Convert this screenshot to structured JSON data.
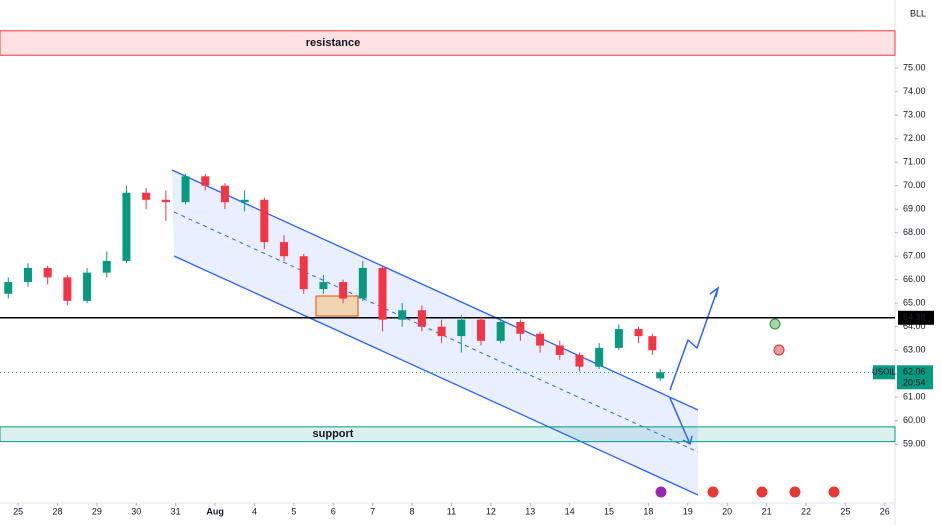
{
  "chart_data": {
    "type": "candlestick",
    "symbol": "USOIL",
    "currency_badge": "BLL",
    "countdown": "20:54",
    "x": [
      -0.25,
      0.25,
      0.75,
      1.25,
      1.75,
      2.25,
      2.75,
      3.25,
      3.75,
      4.25,
      4.75,
      5.25,
      5.75,
      6.25,
      6.75,
      7.25,
      7.75,
      8.25,
      8.75,
      9.25,
      9.75,
      10.25,
      10.75,
      11.25,
      11.75,
      12.25,
      12.75,
      13.25,
      13.75,
      14.25,
      14.75,
      15.25,
      15.75,
      16.1,
      16.3
    ],
    "open": [
      65.4,
      65.9,
      66.5,
      66.1,
      65.1,
      66.3,
      66.8,
      69.7,
      69.4,
      69.3,
      70.4,
      70.0,
      69.3,
      69.4,
      67.6,
      67.0,
      65.6,
      65.9,
      65.2,
      66.5,
      64.3,
      64.7,
      64.0,
      63.6,
      64.3,
      63.4,
      64.2,
      63.7,
      63.2,
      62.8,
      62.3,
      63.1,
      63.9,
      63.6,
      61.8
    ],
    "high": [
      66.1,
      66.7,
      66.6,
      66.2,
      66.5,
      67.2,
      70.0,
      69.9,
      69.8,
      70.5,
      70.5,
      70.1,
      69.8,
      69.5,
      67.9,
      67.1,
      66.2,
      66.0,
      66.8,
      66.6,
      65.0,
      64.9,
      64.3,
      64.5,
      64.4,
      64.4,
      64.3,
      63.8,
      63.4,
      62.9,
      63.3,
      64.1,
      64.0,
      63.7,
      62.2
    ],
    "low": [
      65.2,
      65.7,
      65.8,
      64.9,
      65.0,
      66.1,
      66.7,
      69.0,
      68.5,
      69.2,
      69.8,
      69.0,
      68.9,
      67.3,
      66.8,
      65.4,
      65.4,
      65.0,
      65.1,
      63.8,
      64.0,
      63.8,
      63.3,
      62.9,
      63.2,
      63.3,
      63.4,
      62.9,
      62.6,
      62.1,
      62.2,
      63.0,
      63.3,
      62.8,
      61.7
    ],
    "close": [
      65.9,
      66.5,
      66.1,
      65.1,
      66.3,
      66.8,
      69.7,
      69.4,
      69.3,
      70.4,
      70.0,
      69.3,
      69.4,
      67.6,
      67.0,
      65.6,
      65.9,
      65.2,
      66.5,
      64.3,
      64.7,
      64.0,
      63.6,
      64.3,
      63.4,
      64.2,
      63.7,
      63.2,
      62.8,
      62.3,
      63.1,
      63.9,
      63.6,
      63.0,
      62.06
    ],
    "up_color": "#089981",
    "down_color": "#f23645",
    "ylim": [
      56.5,
      77.9
    ],
    "xlim": [
      -0.46,
      22.26
    ],
    "yticks": [
      {
        "value": 59,
        "label": "59.00"
      },
      {
        "value": 60,
        "label": "60.00"
      },
      {
        "value": 61,
        "label": "61.00"
      },
      {
        "value": 62,
        "label": "62.00"
      },
      {
        "value": 63,
        "label": "63.00"
      },
      {
        "value": 64,
        "label": "64.00"
      },
      {
        "value": 65,
        "label": "65.00"
      },
      {
        "value": 66,
        "label": "66.00"
      },
      {
        "value": 67,
        "label": "67.00"
      },
      {
        "value": 68,
        "label": "68.00"
      },
      {
        "value": 69,
        "label": "69.00"
      },
      {
        "value": 70,
        "label": "70.00"
      },
      {
        "value": 71,
        "label": "71.00"
      },
      {
        "value": 72,
        "label": "72.00"
      },
      {
        "value": 73,
        "label": "73.00"
      },
      {
        "value": 74,
        "label": "74.00"
      },
      {
        "value": 75,
        "label": "75.00"
      }
    ],
    "xticks": [
      {
        "value": 0,
        "label": "25"
      },
      {
        "value": 1,
        "label": "28"
      },
      {
        "value": 2,
        "label": "29"
      },
      {
        "value": 3,
        "label": "30"
      },
      {
        "value": 4,
        "label": "31"
      },
      {
        "value": 5,
        "label": "Aug"
      },
      {
        "value": 6,
        "label": "4"
      },
      {
        "value": 7,
        "label": "5"
      },
      {
        "value": 8,
        "label": "6"
      },
      {
        "value": 9,
        "label": "7"
      },
      {
        "value": 10,
        "label": "8"
      },
      {
        "value": 11,
        "label": "11"
      },
      {
        "value": 12,
        "label": "12"
      },
      {
        "value": 13,
        "label": "13"
      },
      {
        "value": 14,
        "label": "14"
      },
      {
        "value": 15,
        "label": "15"
      },
      {
        "value": 16,
        "label": "18"
      },
      {
        "value": 17,
        "label": "19"
      },
      {
        "value": 18,
        "label": "20"
      },
      {
        "value": 19,
        "label": "21"
      },
      {
        "value": 20,
        "label": "22"
      },
      {
        "value": 21,
        "label": "25"
      },
      {
        "value": 22,
        "label": "26"
      }
    ],
    "hline": {
      "value": 64.38,
      "label": "64.38"
    },
    "resistance": {
      "label": "resistance",
      "range": [
        75.55,
        76.59
      ]
    },
    "support": {
      "label": "support",
      "range": [
        59.11,
        59.74
      ]
    }
  }
}
